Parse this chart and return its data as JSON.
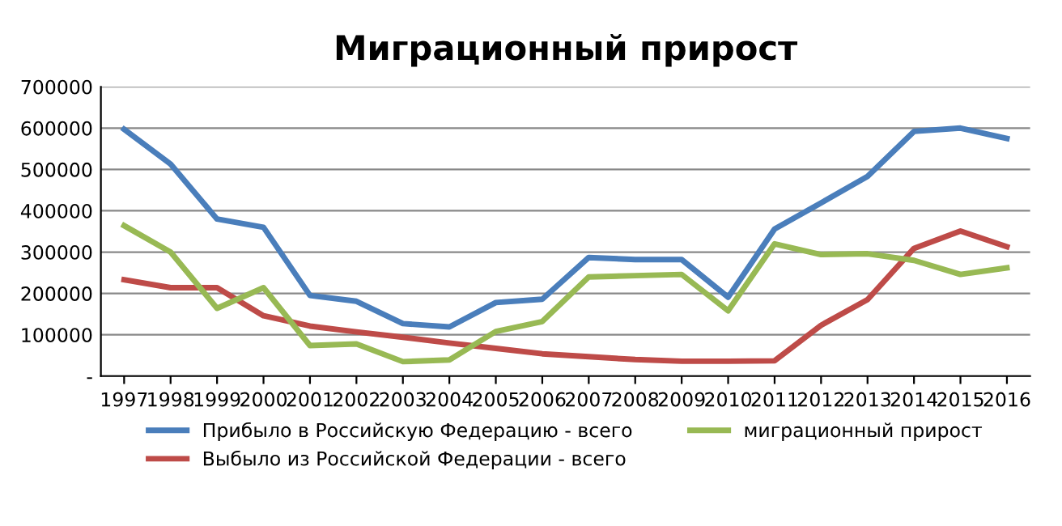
{
  "chart_data": {
    "type": "line",
    "title": "Миграционный прирост",
    "categories": [
      "1997",
      "1998",
      "1999",
      "2000",
      "2001",
      "2002",
      "2003",
      "2004",
      "2005",
      "2006",
      "2007",
      "2008",
      "2009",
      "2010",
      "2011",
      "2012",
      "2013",
      "2014",
      "2015",
      "2016"
    ],
    "series": [
      {
        "name": "Прибыло в Российскую Федерацию - всего",
        "color": "#4a7ebb",
        "values": [
          597000,
          513000,
          380000,
          360000,
          195000,
          181000,
          127000,
          119000,
          178000,
          186000,
          287000,
          282000,
          282000,
          191000,
          356000,
          419000,
          483000,
          592000,
          600000,
          575000
        ]
      },
      {
        "name": "Выбыло из Российской Федерации - всего",
        "color": "#be4b48",
        "values": [
          233000,
          214000,
          214000,
          146000,
          121000,
          107000,
          94000,
          80000,
          67000,
          54000,
          47000,
          40000,
          36000,
          36000,
          37000,
          123000,
          185000,
          309000,
          351000,
          313000
        ]
      },
      {
        "name": "миграционный прирост",
        "color": "#98b954",
        "values": [
          364000,
          300000,
          164000,
          214000,
          74000,
          78000,
          35000,
          39000,
          108000,
          132000,
          240000,
          243000,
          246000,
          158000,
          320000,
          294000,
          296000,
          280000,
          246000,
          262000
        ]
      }
    ],
    "ylim": [
      0,
      700000
    ],
    "yticks": [
      {
        "value": 0,
        "label": "-"
      },
      100000,
      200000,
      300000,
      400000,
      500000,
      600000,
      700000
    ],
    "grid": "y",
    "legend": "bottom",
    "marker": "none",
    "line_style": "solid"
  }
}
